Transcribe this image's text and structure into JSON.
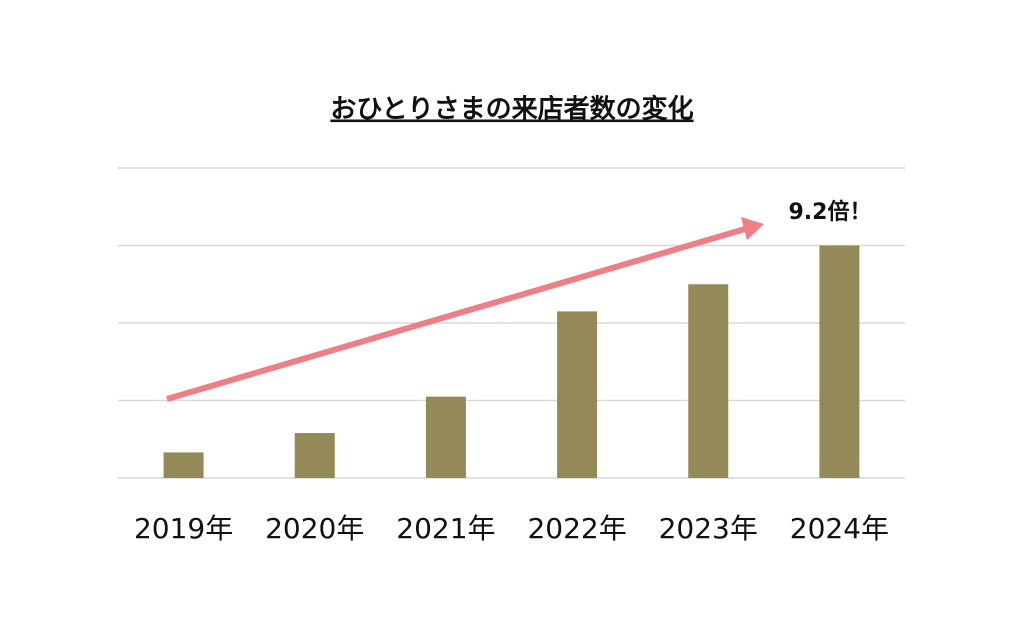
{
  "chart_data": {
    "type": "bar",
    "title": "おひとりさまの来店者数の変化",
    "categories": [
      "2019年",
      "2020年",
      "2021年",
      "2022年",
      "2023年",
      "2024年"
    ],
    "values": [
      0.33,
      0.58,
      1.05,
      2.15,
      2.5,
      3.0
    ],
    "color": "#948a58",
    "ylim": [
      0,
      4
    ],
    "yticks": [
      0,
      1,
      2,
      3,
      4
    ],
    "grid": true,
    "annotation": "9.2倍！"
  }
}
